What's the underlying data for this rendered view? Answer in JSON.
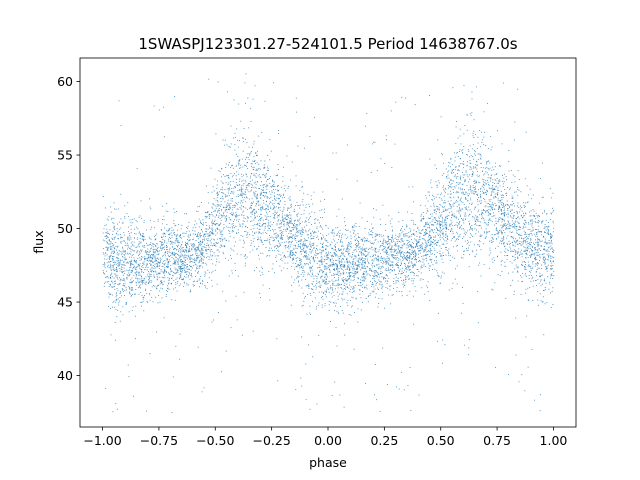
{
  "chart_data": {
    "type": "scatter",
    "title": "1SWASPJ123301.27-524101.5 Period 14638767.0s",
    "xlabel": "phase",
    "ylabel": "flux",
    "xlim": [
      -1.1,
      1.1
    ],
    "ylim": [
      36.5,
      61.6
    ],
    "xticks": [
      -1.0,
      -0.75,
      -0.5,
      -0.25,
      0.0,
      0.25,
      0.5,
      0.75,
      1.0
    ],
    "xtick_labels": [
      "−1.00",
      "−0.75",
      "−0.50",
      "−0.25",
      "0.00",
      "0.25",
      "0.50",
      "0.75",
      "1.00"
    ],
    "yticks": [
      40,
      45,
      50,
      55,
      60
    ],
    "ytick_labels": [
      "40",
      "45",
      "50",
      "55",
      "60"
    ],
    "grid": false,
    "legend": "none",
    "point_color": "#1f77b4",
    "series": [
      {
        "x": [
          -1.0,
          -0.95,
          -0.9,
          -0.85,
          -0.8,
          -0.75,
          -0.7,
          -0.65,
          -0.6,
          -0.55,
          -0.5,
          -0.45,
          -0.4,
          -0.35,
          -0.3,
          -0.25,
          -0.2,
          -0.15,
          -0.1,
          -0.05,
          0.0,
          0.05,
          0.1,
          0.15,
          0.2,
          0.25,
          0.3,
          0.35,
          0.4,
          0.45,
          0.5,
          0.55,
          0.6,
          0.65,
          0.7,
          0.75,
          0.8,
          0.85,
          0.9,
          0.95,
          1.0
        ],
        "y": [
          48.6,
          48.0,
          47.6,
          47.8,
          47.5,
          47.9,
          48.3,
          47.9,
          48.5,
          48.9,
          50.1,
          51.5,
          52.1,
          52.3,
          51.8,
          51.1,
          50.2,
          49.4,
          48.6,
          48.2,
          47.9,
          47.6,
          47.3,
          47.7,
          48.0,
          47.8,
          48.3,
          48.1,
          48.6,
          49.4,
          50.3,
          51.4,
          52.0,
          52.4,
          52.0,
          51.2,
          50.3,
          49.6,
          48.9,
          48.5,
          48.6
        ],
        "spread": [
          2.0,
          2.0,
          2.1,
          1.9,
          1.7,
          1.6,
          1.4,
          1.3,
          1.4,
          1.7,
          2.1,
          2.5,
          2.7,
          2.7,
          2.6,
          2.3,
          2.0,
          1.8,
          1.9,
          2.0,
          2.0,
          1.8,
          1.7,
          1.6,
          1.5,
          1.5,
          1.4,
          1.4,
          1.5,
          1.8,
          2.2,
          2.5,
          2.7,
          2.7,
          2.6,
          2.3,
          2.1,
          1.9,
          1.9,
          2.0,
          2.0
        ]
      }
    ]
  }
}
